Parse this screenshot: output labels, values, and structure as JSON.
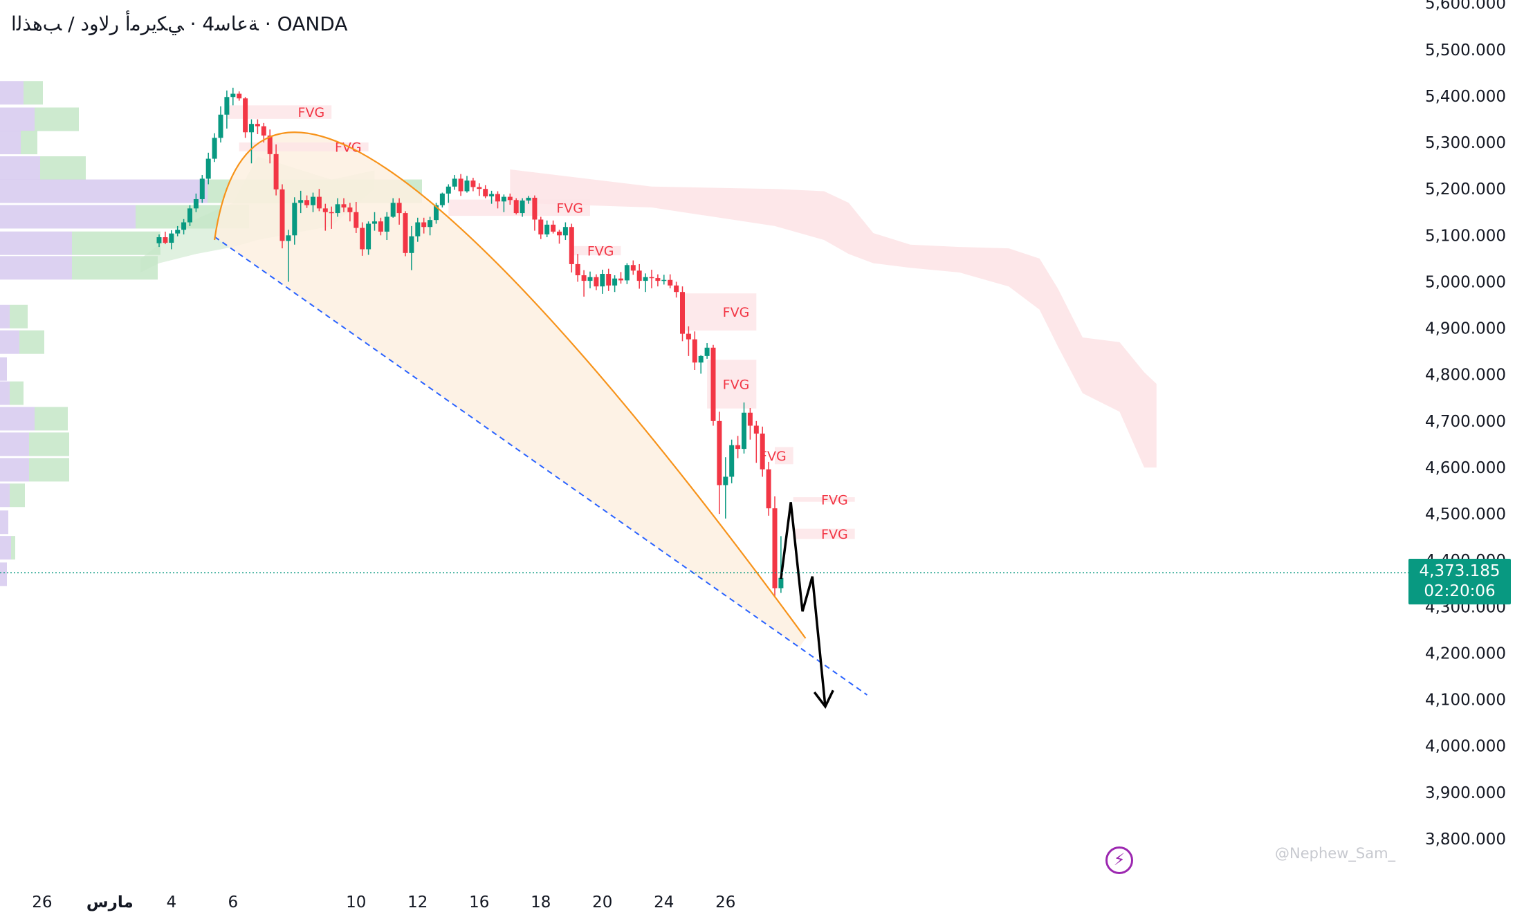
{
  "header": {
    "title": "ﺔﻋﺎﺳ4 · ﻲﻜﻳﺮﻣﺃ ﺭﻻﻭﺩ / ﺐﻫﺬﻟﺍ · OANDA"
  },
  "last_price": {
    "value": "4,373.185",
    "countdown": "02:20:06"
  },
  "watermark": "@Nephew_Sam_",
  "colors": {
    "up": "#089981",
    "down": "#f23645",
    "arc": "#f7931a",
    "trend": "#2962ff",
    "fvg_fill": "#fde3e6",
    "fvg_text": "#f23645",
    "cloud": "#fcdfe2",
    "cloud_green": "#d6ecd5",
    "arc_fill": "#fdf0e0",
    "vp_purple": "#d6c9ef",
    "vp_green": "#c4e6c7",
    "price_line": "#089981"
  },
  "icons": {
    "bolt": "lightning-bolt-icon"
  },
  "chart_data": {
    "type": "candlestick",
    "title": "ﺔﻋﺎﺳ4 · ﻲﻜﻳﺮﻣﺃ ﺭﻻﻭﺩ / ﺐﻫﺬﻟﺍ · OANDA",
    "ylim": [
      3750,
      5610
    ],
    "y_ticks": [
      "3,800.000",
      "3,900.000",
      "4,000.000",
      "4,100.000",
      "4,200.000",
      "4,300.000",
      "4,400.000",
      "4,500.000",
      "4,600.000",
      "4,700.000",
      "4,800.000",
      "4,900.000",
      "5,000.000",
      "5,100.000",
      "5,200.000",
      "5,300.000",
      "5,400.000",
      "5,500.000",
      "5,600.000"
    ],
    "x_ticks": [
      {
        "label": "26",
        "bar": -19
      },
      {
        "label": "مارس",
        "bar": -8
      },
      {
        "label": "4",
        "bar": 2
      },
      {
        "label": "6",
        "bar": 12
      },
      {
        "label": "10",
        "bar": 32
      },
      {
        "label": "12",
        "bar": 42
      },
      {
        "label": "16",
        "bar": 52
      },
      {
        "label": "18",
        "bar": 62
      },
      {
        "label": "20",
        "bar": 72
      },
      {
        "label": "24",
        "bar": 82
      },
      {
        "label": "26",
        "bar": 92
      }
    ],
    "candles": [
      [
        5083,
        5102,
        5075,
        5096
      ],
      [
        5096,
        5108,
        5081,
        5084
      ],
      [
        5084,
        5111,
        5070,
        5104
      ],
      [
        5104,
        5120,
        5098,
        5112
      ],
      [
        5112,
        5135,
        5102,
        5128
      ],
      [
        5128,
        5165,
        5120,
        5158
      ],
      [
        5158,
        5190,
        5150,
        5178
      ],
      [
        5178,
        5230,
        5170,
        5222
      ],
      [
        5222,
        5278,
        5210,
        5265
      ],
      [
        5265,
        5320,
        5258,
        5310
      ],
      [
        5310,
        5378,
        5300,
        5360
      ],
      [
        5360,
        5412,
        5330,
        5398
      ],
      [
        5398,
        5418,
        5380,
        5405
      ],
      [
        5405,
        5410,
        5390,
        5395
      ],
      [
        5395,
        5398,
        5310,
        5322
      ],
      [
        5322,
        5350,
        5255,
        5340
      ],
      [
        5340,
        5350,
        5318,
        5335
      ],
      [
        5335,
        5342,
        5300,
        5315
      ],
      [
        5315,
        5328,
        5255,
        5275
      ],
      [
        5275,
        5296,
        5186,
        5199
      ],
      [
        5199,
        5210,
        5072,
        5088
      ],
      [
        5088,
        5112,
        5000,
        5100
      ],
      [
        5100,
        5182,
        5080,
        5170
      ],
      [
        5170,
        5196,
        5148,
        5176
      ],
      [
        5176,
        5186,
        5159,
        5165
      ],
      [
        5165,
        5192,
        5150,
        5183
      ],
      [
        5183,
        5200,
        5152,
        5158
      ],
      [
        5158,
        5168,
        5110,
        5150
      ],
      [
        5150,
        5162,
        5114,
        5148
      ],
      [
        5148,
        5180,
        5140,
        5167
      ],
      [
        5167,
        5180,
        5150,
        5160
      ],
      [
        5160,
        5170,
        5130,
        5150
      ],
      [
        5150,
        5172,
        5105,
        5116
      ],
      [
        5116,
        5128,
        5056,
        5070
      ],
      [
        5070,
        5130,
        5058,
        5125
      ],
      [
        5125,
        5150,
        5110,
        5130
      ],
      [
        5130,
        5138,
        5100,
        5108
      ],
      [
        5108,
        5150,
        5090,
        5140
      ],
      [
        5140,
        5180,
        5138,
        5170
      ],
      [
        5170,
        5180,
        5123,
        5148
      ],
      [
        5148,
        5152,
        5055,
        5062
      ],
      [
        5062,
        5120,
        5025,
        5098
      ],
      [
        5098,
        5138,
        5086,
        5128
      ],
      [
        5128,
        5138,
        5104,
        5118
      ],
      [
        5118,
        5140,
        5100,
        5133
      ],
      [
        5133,
        5170,
        5125,
        5165
      ],
      [
        5165,
        5192,
        5160,
        5190
      ],
      [
        5190,
        5210,
        5170,
        5205
      ],
      [
        5205,
        5230,
        5198,
        5222
      ],
      [
        5222,
        5232,
        5185,
        5195
      ],
      [
        5195,
        5228,
        5192,
        5218
      ],
      [
        5218,
        5224,
        5195,
        5204
      ],
      [
        5204,
        5212,
        5185,
        5200
      ],
      [
        5200,
        5208,
        5180,
        5184
      ],
      [
        5184,
        5196,
        5168,
        5189
      ],
      [
        5189,
        5195,
        5158,
        5173
      ],
      [
        5173,
        5188,
        5150,
        5183
      ],
      [
        5183,
        5190,
        5166,
        5176
      ],
      [
        5176,
        5180,
        5145,
        5148
      ],
      [
        5148,
        5180,
        5140,
        5175
      ],
      [
        5175,
        5185,
        5168,
        5181
      ],
      [
        5181,
        5186,
        5110,
        5134
      ],
      [
        5134,
        5140,
        5092,
        5102
      ],
      [
        5102,
        5132,
        5096,
        5123
      ],
      [
        5123,
        5132,
        5104,
        5108
      ],
      [
        5108,
        5112,
        5082,
        5100
      ],
      [
        5100,
        5128,
        5090,
        5118
      ],
      [
        5118,
        5125,
        5020,
        5038
      ],
      [
        5038,
        5060,
        5000,
        5014
      ],
      [
        5014,
        5025,
        4968,
        5002
      ],
      [
        5002,
        5022,
        4986,
        5010
      ],
      [
        5010,
        5016,
        4982,
        4990
      ],
      [
        4990,
        5026,
        4974,
        5017
      ],
      [
        5017,
        5028,
        4980,
        4992
      ],
      [
        4992,
        5014,
        4978,
        5007
      ],
      [
        5007,
        5021,
        4996,
        5003
      ],
      [
        5003,
        5040,
        4995,
        5036
      ],
      [
        5036,
        5046,
        5015,
        5024
      ],
      [
        5024,
        5038,
        4985,
        5002
      ],
      [
        5002,
        5018,
        4978,
        5010
      ],
      [
        5010,
        5026,
        4986,
        5008
      ],
      [
        5008,
        5016,
        4990,
        5002
      ],
      [
        5002,
        5015,
        4994,
        5004
      ],
      [
        5004,
        5016,
        4986,
        4992
      ],
      [
        4992,
        5000,
        4966,
        4978
      ],
      [
        4978,
        4990,
        4872,
        4888
      ],
      [
        4888,
        4904,
        4840,
        4876
      ],
      [
        4876,
        4893,
        4810,
        4826
      ],
      [
        4826,
        4842,
        4802,
        4840
      ],
      [
        4840,
        4868,
        4834,
        4858
      ],
      [
        4858,
        4864,
        4690,
        4700
      ],
      [
        4700,
        4720,
        4500,
        4562
      ],
      [
        4562,
        4622,
        4490,
        4580
      ],
      [
        4580,
        4660,
        4566,
        4648
      ],
      [
        4648,
        4668,
        4620,
        4640
      ],
      [
        4640,
        4740,
        4630,
        4718
      ],
      [
        4718,
        4728,
        4660,
        4690
      ],
      [
        4690,
        4700,
        4610,
        4673
      ],
      [
        4673,
        4688,
        4580,
        4596
      ],
      [
        4596,
        4612,
        4496,
        4512
      ],
      [
        4512,
        4538,
        4320,
        4340
      ],
      [
        4340,
        4452,
        4330,
        4362
      ]
    ],
    "fvg_zones": [
      {
        "label": "FVG",
        "from_bar": 11,
        "to_bar": 28,
        "y_top": 5380,
        "y_bottom": 5351
      },
      {
        "label": "FVG",
        "from_bar": 13,
        "to_bar": 34,
        "y_top": 5300,
        "y_bottom": 5281
      },
      {
        "label": "FVG",
        "from_bar": 47,
        "to_bar": 70,
        "y_top": 5177,
        "y_bottom": 5142
      },
      {
        "label": "FVG",
        "from_bar": 67,
        "to_bar": 75,
        "y_top": 5077,
        "y_bottom": 5057
      },
      {
        "label": "FVG",
        "from_bar": 85,
        "to_bar": 97,
        "y_top": 4975,
        "y_bottom": 4895
      },
      {
        "label": "FVG",
        "from_bar": 89,
        "to_bar": 97,
        "y_top": 4832,
        "y_bottom": 4727
      },
      {
        "label": "FVG",
        "from_bar": 100,
        "to_bar": 103,
        "y_top": 4644,
        "y_bottom": 4607
      },
      {
        "label": "FVG",
        "from_bar": 103,
        "to_bar": 113,
        "y_top": 4536,
        "y_bottom": 4526
      },
      {
        "label": "FVG",
        "from_bar": 103,
        "to_bar": 113,
        "y_top": 4468,
        "y_bottom": 4446
      }
    ],
    "arc": {
      "start_bar": 9,
      "start_price": 5090,
      "peak_bar": 37,
      "peak_price": 5243,
      "end_bar": 105,
      "end_price": 4232
    },
    "trendline": {
      "start_bar": 9,
      "start_price": 5097,
      "end_bar": 115,
      "end_price": 4110
    },
    "projection": [
      [
        101,
        4360
      ],
      [
        102.6,
        4525
      ],
      [
        104.5,
        4290
      ],
      [
        106.1,
        4365
      ],
      [
        108.2,
        4085
      ]
    ],
    "last_price": 4373.185,
    "volume_profile": [
      {
        "price": 5407,
        "purple": 34,
        "green": 28
      },
      {
        "price": 5350,
        "purple": 50,
        "green": 64
      },
      {
        "price": 5300,
        "purple": 30,
        "green": 24
      },
      {
        "price": 5245,
        "purple": 58,
        "green": 66
      },
      {
        "price": 5195,
        "purple": 300,
        "green": 310
      },
      {
        "price": 5140,
        "purple": 196,
        "green": 164
      },
      {
        "price": 5083,
        "purple": 104,
        "green": 128
      },
      {
        "price": 5030,
        "purple": 104,
        "green": 124
      },
      {
        "price": 4925,
        "purple": 14,
        "green": 26
      },
      {
        "price": 4870,
        "purple": 28,
        "green": 36
      },
      {
        "price": 4812,
        "purple": 10,
        "green": 0
      },
      {
        "price": 4760,
        "purple": 14,
        "green": 20
      },
      {
        "price": 4705,
        "purple": 50,
        "green": 48
      },
      {
        "price": 4650,
        "purple": 42,
        "green": 58
      },
      {
        "price": 4595,
        "purple": 42,
        "green": 58
      },
      {
        "price": 4540,
        "purple": 14,
        "green": 22
      },
      {
        "price": 4482,
        "purple": 12,
        "green": 0
      },
      {
        "price": 4427,
        "purple": 16,
        "green": 6
      },
      {
        "price": 4370,
        "purple": 10,
        "green": 0
      }
    ],
    "cloud_red_top": [
      [
        57,
        5242
      ],
      [
        80,
        5205
      ],
      [
        100,
        5200
      ],
      [
        108,
        5195
      ],
      [
        112,
        5170
      ],
      [
        116,
        5105
      ],
      [
        122,
        5080
      ],
      [
        130,
        5075
      ],
      [
        138,
        5072
      ],
      [
        143,
        5050
      ],
      [
        146,
        4985
      ],
      [
        150,
        4880
      ],
      [
        156,
        4870
      ],
      [
        160,
        4805
      ],
      [
        162,
        4780
      ]
    ],
    "cloud_red_bottom": [
      [
        57,
        5170
      ],
      [
        80,
        5160
      ],
      [
        100,
        5120
      ],
      [
        108,
        5090
      ],
      [
        112,
        5060
      ],
      [
        116,
        5040
      ],
      [
        122,
        5030
      ],
      [
        130,
        5020
      ],
      [
        138,
        4990
      ],
      [
        143,
        4940
      ],
      [
        146,
        4860
      ],
      [
        150,
        4760
      ],
      [
        156,
        4720
      ],
      [
        160,
        4600
      ],
      [
        162,
        4600
      ]
    ],
    "cloud_green_top": [
      [
        -3,
        5050
      ],
      [
        0,
        5080
      ],
      [
        6,
        5135
      ],
      [
        12,
        5170
      ],
      [
        16,
        5270
      ],
      [
        28,
        5220
      ],
      [
        35,
        5240
      ]
    ],
    "cloud_green_bottom": [
      [
        -3,
        5020
      ],
      [
        0,
        5040
      ],
      [
        6,
        5060
      ],
      [
        12,
        5075
      ],
      [
        16,
        5090
      ],
      [
        28,
        5120
      ],
      [
        35,
        5200
      ]
    ]
  }
}
